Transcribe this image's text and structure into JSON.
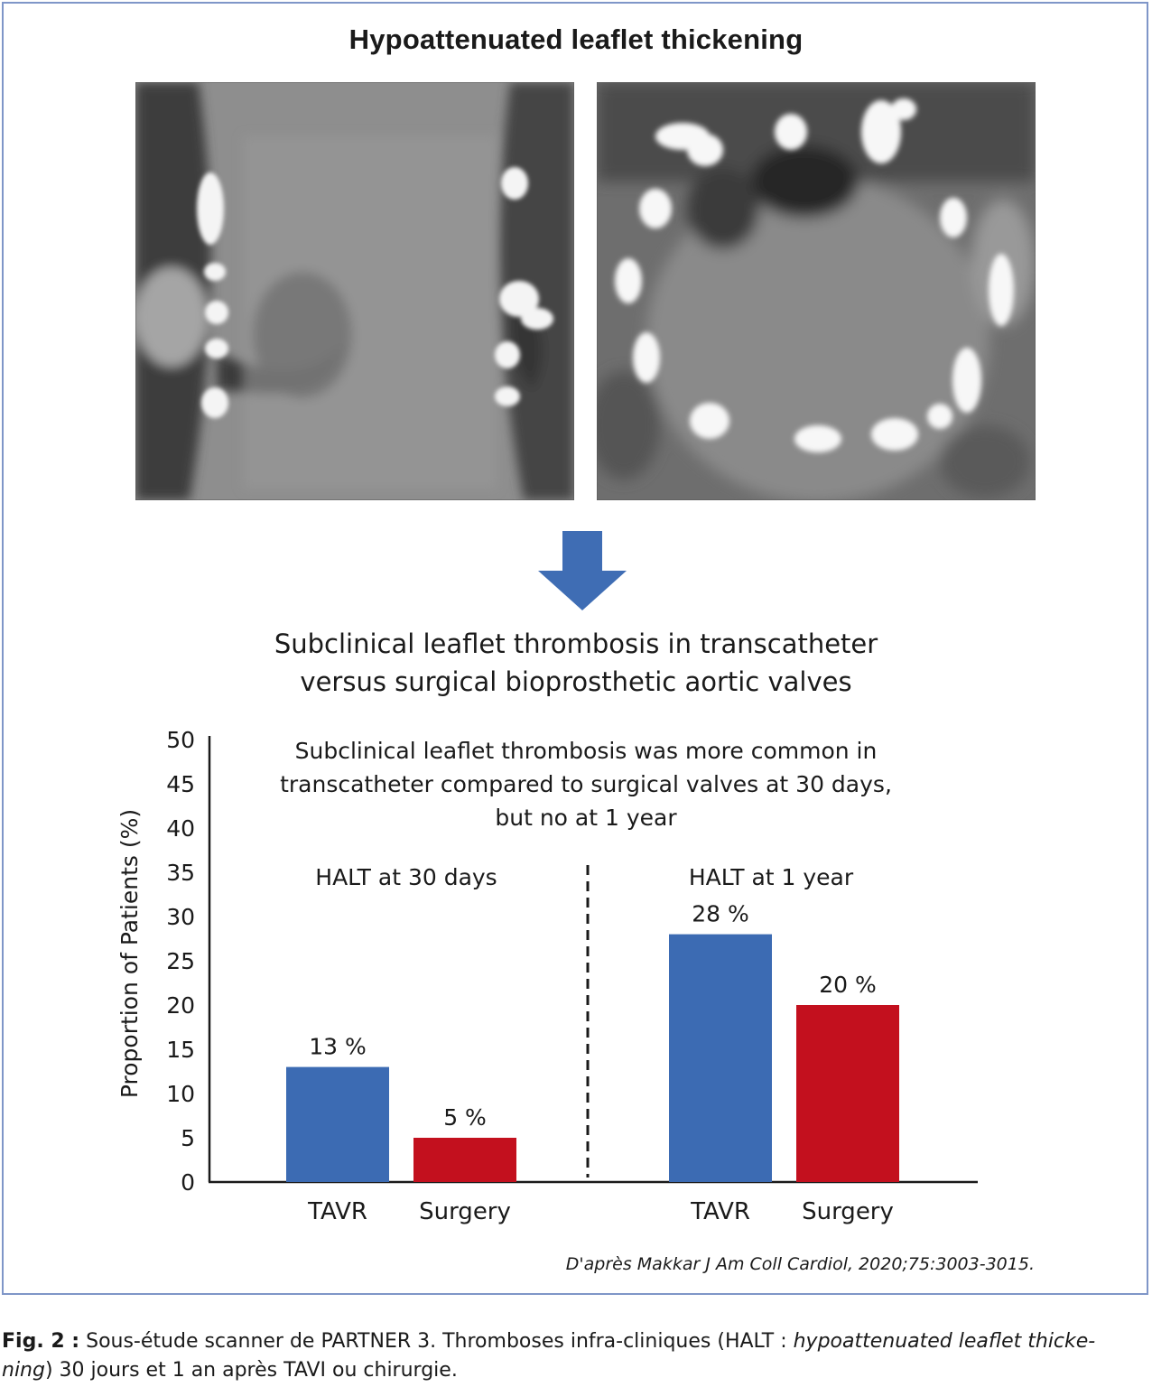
{
  "figure": {
    "top_title": "Hypoattenuated leaflet thickening",
    "subtitle_line1": "Subclinical leaflet thrombosis in transcatheter",
    "subtitle_line2": "versus surgical bioprosthetic aortic valves",
    "source": "D'après Makkar J Am Coll Cardiol, 2020;75:3003-3015.",
    "arrow_icon": "down-arrow-icon"
  },
  "caption": {
    "label": "Fig. 2 :",
    "text_a": " Sous-étude scanner de PARTNER 3. Thromboses infra-cliniques (HALT : ",
    "text_italic_a": "hypoattenuated leaflet thicke-",
    "text_italic_b": "ning",
    "text_b": ") 30 jours et 1 an après TAVI ou chirurgie."
  },
  "colors": {
    "tavr": "#3c6bb3",
    "surgery": "#c3101e",
    "arrow": "#3f6db4",
    "frame": "#7f96c8"
  },
  "chart_data": {
    "type": "bar",
    "ylabel": "Proportion of Patients (%)",
    "ylim": [
      0,
      50
    ],
    "yticks": [
      0,
      5,
      10,
      15,
      20,
      25,
      30,
      35,
      40,
      45,
      50
    ],
    "annotation_lines": [
      "Subclinical leaflet thrombosis was more common in",
      "transcatheter compared to surgical valves at 30 days,",
      "but no at 1 year"
    ],
    "groups": [
      {
        "title": "HALT at 30 days",
        "bars": [
          {
            "category": "TAVR",
            "value": 13,
            "label": "13 %",
            "series": "tavr"
          },
          {
            "category": "Surgery",
            "value": 5,
            "label": "5 %",
            "series": "surgery"
          }
        ]
      },
      {
        "title": "HALT at 1 year",
        "bars": [
          {
            "category": "TAVR",
            "value": 28,
            "label": "28 %",
            "series": "tavr"
          },
          {
            "category": "Surgery",
            "value": 20,
            "label": "20 %",
            "series": "surgery"
          }
        ]
      }
    ],
    "grid": false,
    "group_divider": "dashed"
  }
}
